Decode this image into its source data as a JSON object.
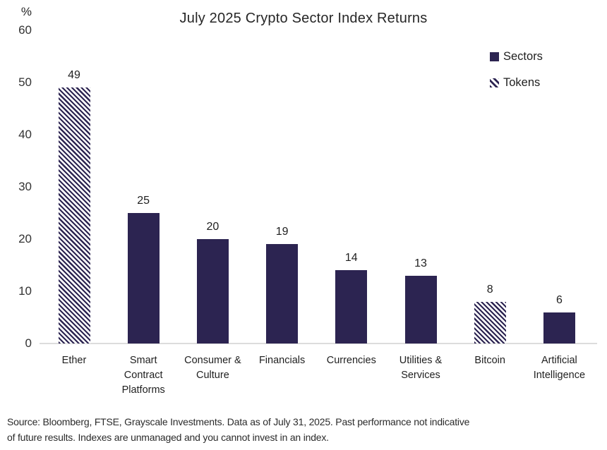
{
  "title": "July 2025 Crypto Sector Index Returns",
  "y_axis": {
    "unit_label": "%"
  },
  "legend": {
    "items": [
      {
        "label": "Sectors",
        "swatch": "solid"
      },
      {
        "label": "Tokens",
        "swatch": "hatched"
      }
    ]
  },
  "footnote": {
    "line1": "Source: Bloomberg, FTSE, Grayscale Investments. Data as of July 31, 2025. Past performance not indicative",
    "line2": "of future results. Indexes are unmanaged and you cannot invest in an index."
  },
  "colors": {
    "bar": "#2C2451",
    "baseline": "#dcdcdc",
    "text": "#1f1f1f"
  },
  "chart_data": {
    "type": "bar",
    "title": "July 2025 Crypto Sector Index Returns",
    "xlabel": "",
    "ylabel": "%",
    "ylim": [
      0,
      60
    ],
    "yticks": [
      0,
      10,
      20,
      30,
      40,
      50,
      60
    ],
    "grid": false,
    "legend_position": "top-right",
    "categories": [
      "Ether",
      "Smart Contract Platforms",
      "Consumer & Culture",
      "Financials",
      "Currencies",
      "Utilities & Services",
      "Bitcoin",
      "Artificial Intelligence"
    ],
    "values": [
      49,
      25,
      20,
      19,
      14,
      13,
      8,
      6
    ],
    "bar_styles": [
      "hatched",
      "solid",
      "solid",
      "solid",
      "solid",
      "solid",
      "hatched",
      "solid"
    ],
    "style_legend": {
      "solid": "Sectors",
      "hatched": "Tokens"
    }
  }
}
